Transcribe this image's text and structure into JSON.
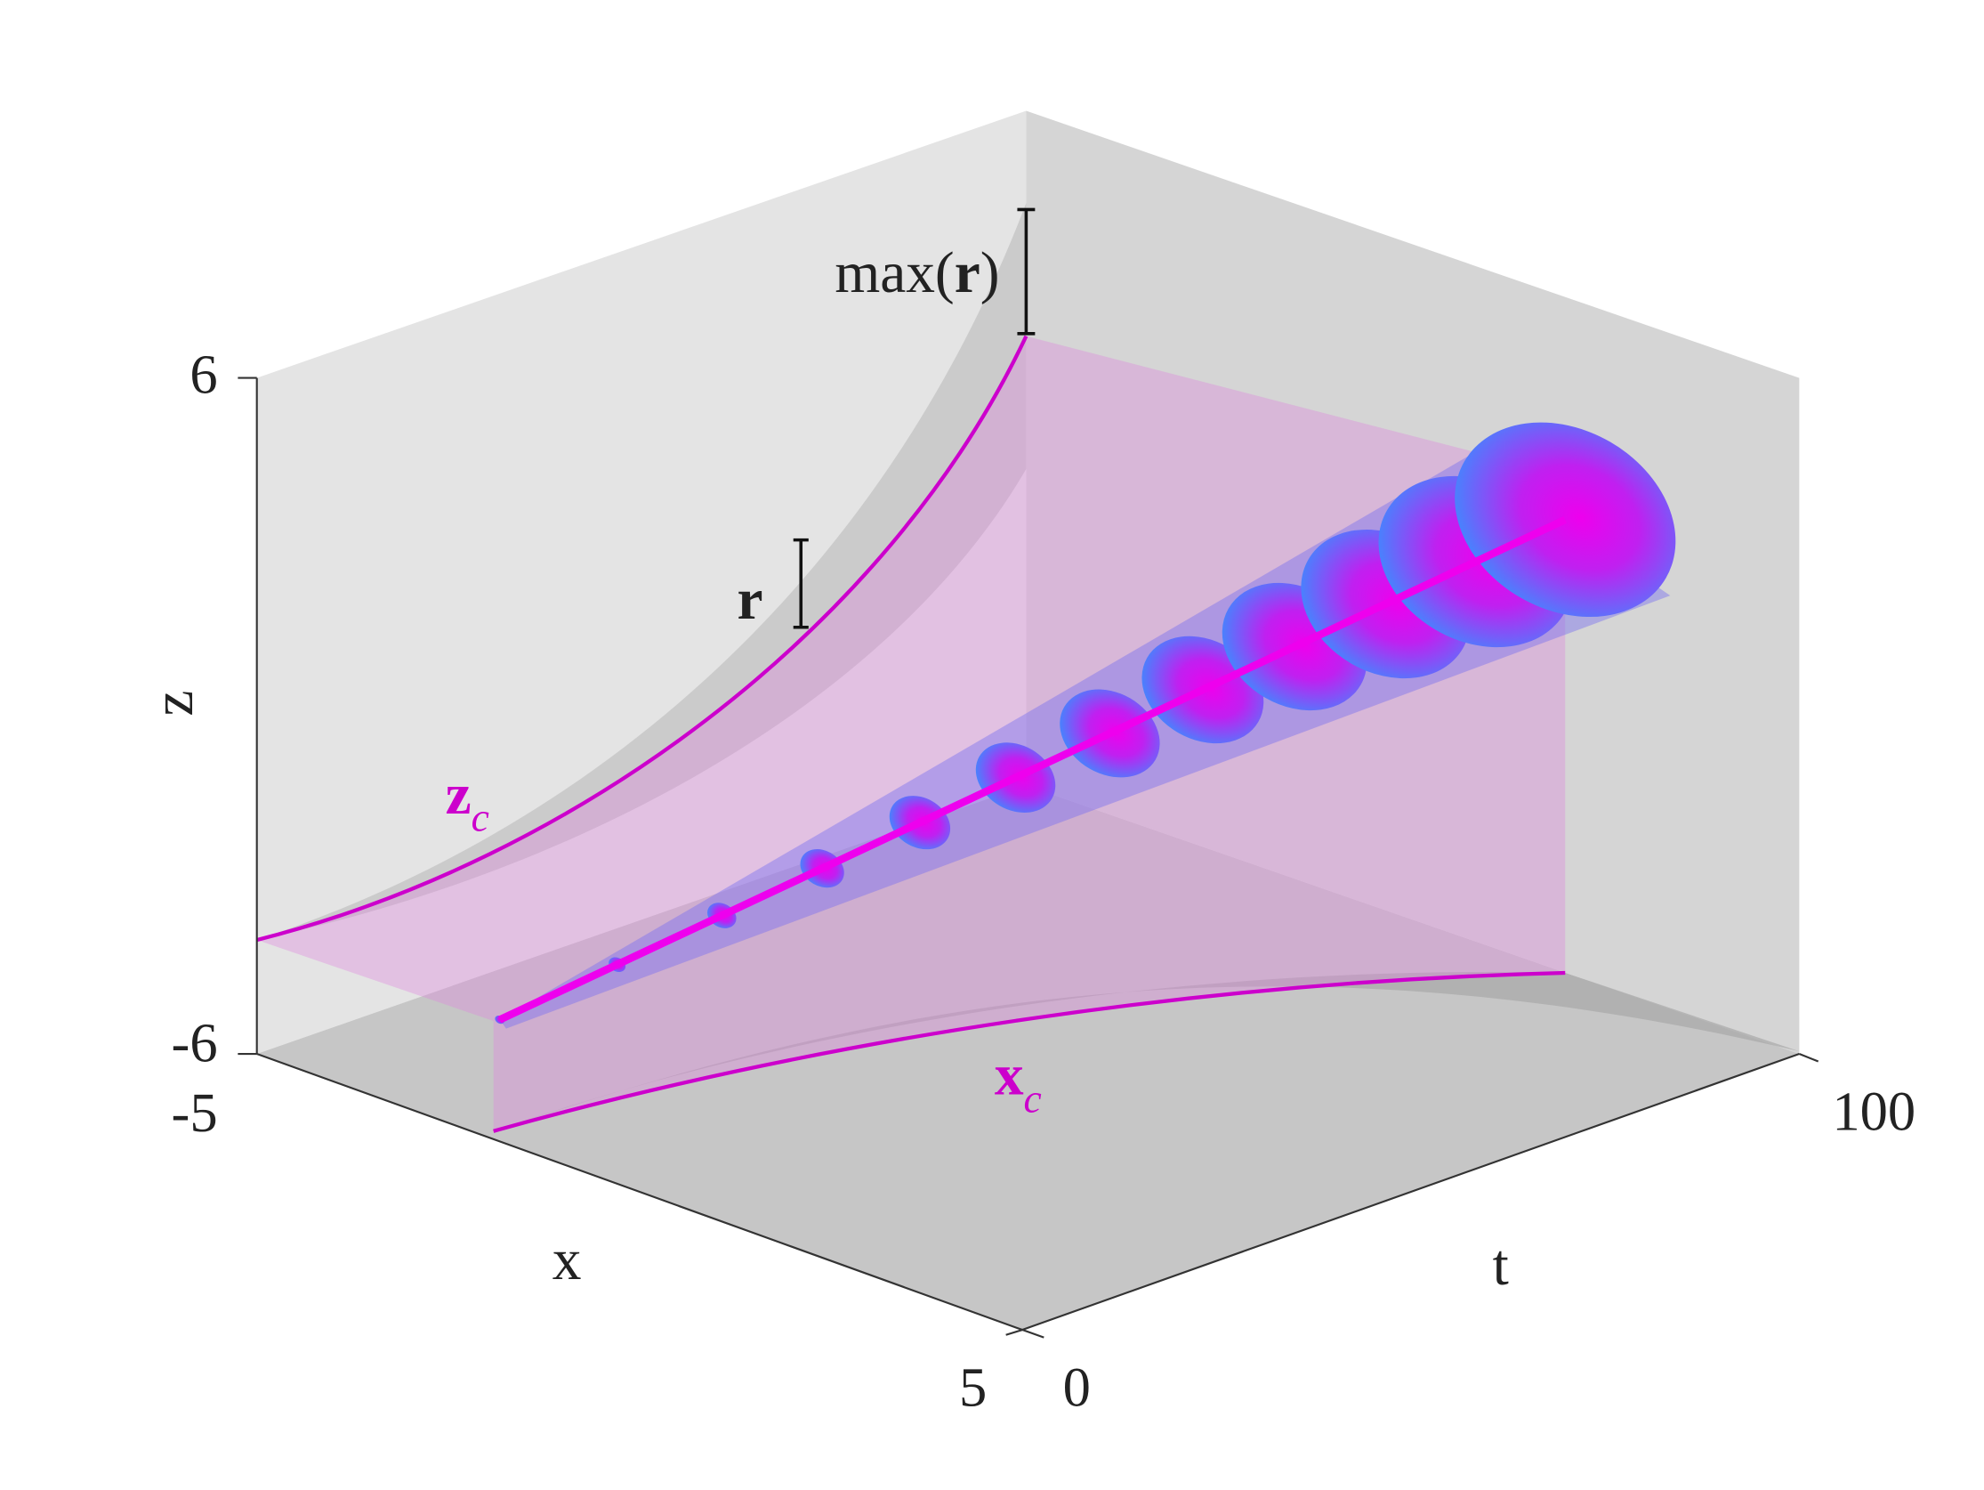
{
  "axes": {
    "z": {
      "label": "z",
      "ticks": [
        -6,
        6
      ]
    },
    "x": {
      "label": "x",
      "ticks": [
        -5,
        5
      ]
    },
    "t": {
      "label": "t",
      "ticks": [
        0,
        100
      ]
    }
  },
  "annotations": {
    "max_r": {
      "prefix": "max(",
      "symbol": "r",
      "suffix": ")"
    },
    "r": "r",
    "z_c": {
      "base": "z",
      "sub": "c"
    },
    "x_c": {
      "base": "x",
      "sub": "c"
    }
  }
}
